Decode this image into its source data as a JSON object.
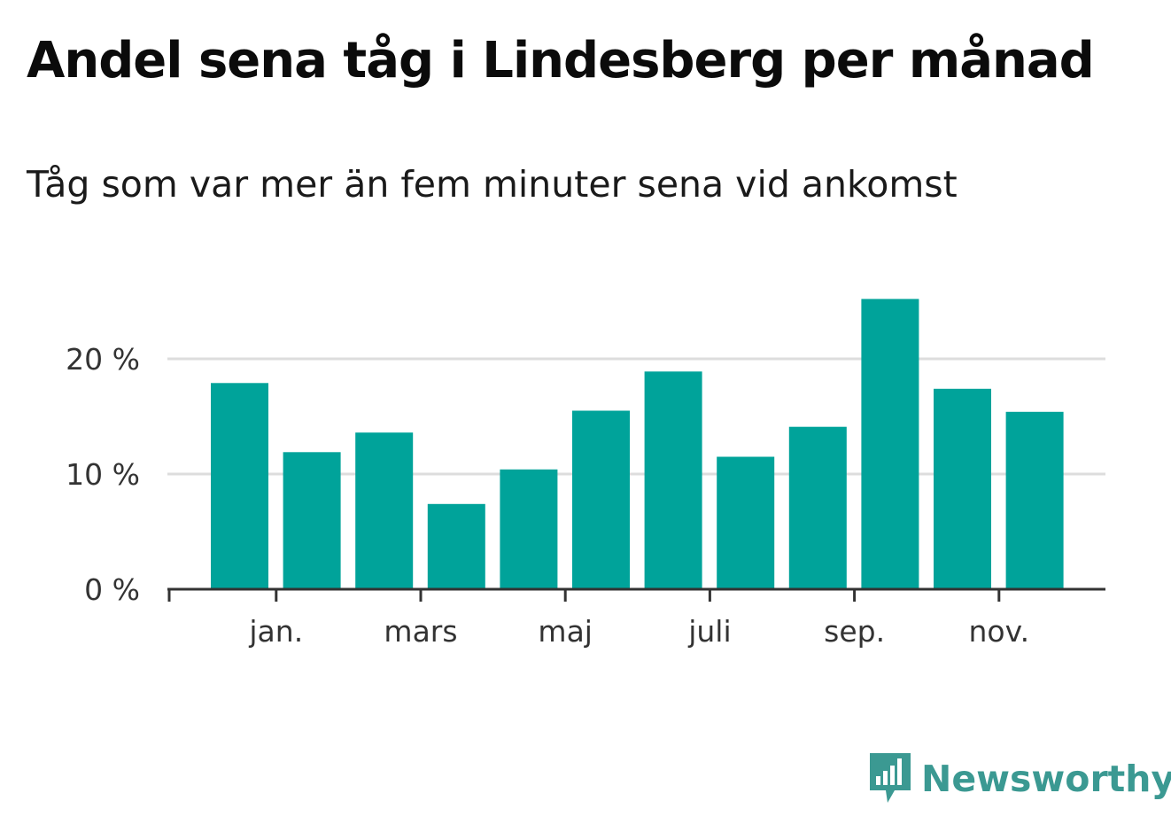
{
  "title": "Andel sena tåg i Lindesberg per månad",
  "subtitle": "Tåg som var mer än fem minuter sena vid ankomst",
  "brand": "Newsworthy",
  "colors": {
    "bar": "#00a39a",
    "grid": "#dddddd",
    "axis": "#333333",
    "tick_text": "#333333",
    "brand": "#3b9992"
  },
  "chart_data": {
    "type": "bar",
    "title": "Andel sena tåg i Lindesberg per månad",
    "subtitle": "Tåg som var mer än fem minuter sena vid ankomst",
    "xlabel": "",
    "ylabel": "",
    "x_tick_labels": [
      {
        "label": "jan.",
        "index": 1
      },
      {
        "label": "mars",
        "index": 3
      },
      {
        "label": "maj",
        "index": 5
      },
      {
        "label": "juli",
        "index": 7
      },
      {
        "label": "sep.",
        "index": 9
      },
      {
        "label": "nov.",
        "index": 11
      }
    ],
    "y_ticks": [
      {
        "value": 0,
        "label": "0 %"
      },
      {
        "value": 10,
        "label": "10 %"
      },
      {
        "value": 20,
        "label": "20 %"
      }
    ],
    "ylim": [
      0,
      29
    ],
    "grid": true,
    "values": [
      17.9,
      11.9,
      13.6,
      7.4,
      10.4,
      15.5,
      18.9,
      11.5,
      14.1,
      25.2,
      17.4,
      15.4
    ]
  }
}
